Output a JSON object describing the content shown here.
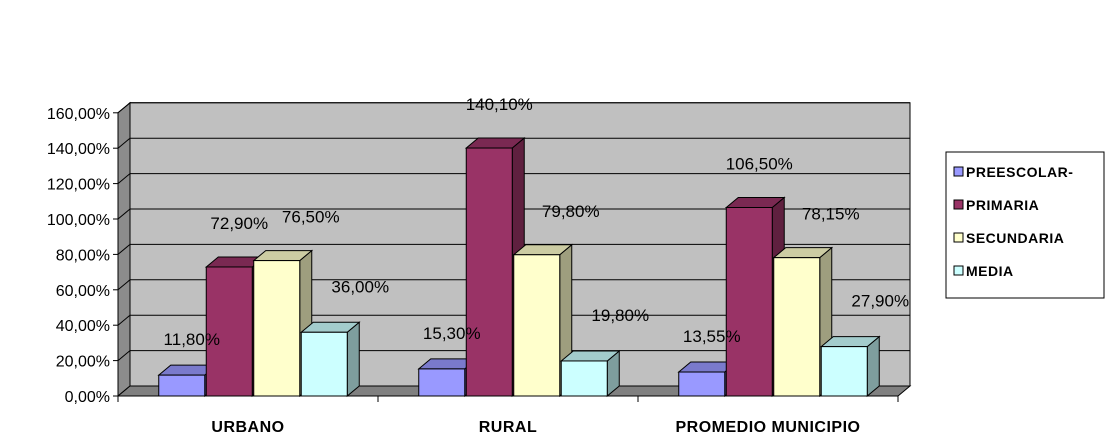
{
  "chart_data": {
    "type": "bar",
    "categories": [
      "URBANO",
      "RURAL",
      "PROMEDIO MUNICIPIO"
    ],
    "series": [
      {
        "name": "PREESCOLAR-",
        "values": [
          11.8,
          15.3,
          13.55
        ],
        "labels": [
          "11,80%",
          "15,30%",
          "13,55%"
        ],
        "color": "#9999FF"
      },
      {
        "name": "PRIMARIA",
        "values": [
          72.9,
          140.1,
          106.5
        ],
        "labels": [
          "72,90%",
          "140,10%",
          "106,50%"
        ],
        "color": "#993366"
      },
      {
        "name": "SECUNDARIA",
        "values": [
          76.5,
          79.8,
          78.15
        ],
        "labels": [
          "76,50%",
          "79,80%",
          "78,15%"
        ],
        "color": "#FFFFCC"
      },
      {
        "name": "MEDIA",
        "values": [
          36.0,
          19.8,
          27.9
        ],
        "labels": [
          "36,00%",
          "19,80%",
          "27,90%"
        ],
        "color": "#CCFFFF"
      }
    ],
    "y_ticks": [
      "0,00%",
      "20,00%",
      "40,00%",
      "60,00%",
      "80,00%",
      "100,00%",
      "120,00%",
      "140,00%",
      "160,00%"
    ],
    "ylim": [
      0,
      160
    ],
    "grid": true,
    "wall_color": "#C0C0C0",
    "legend_position": "right",
    "title": "",
    "xlabel": "",
    "ylabel": ""
  }
}
